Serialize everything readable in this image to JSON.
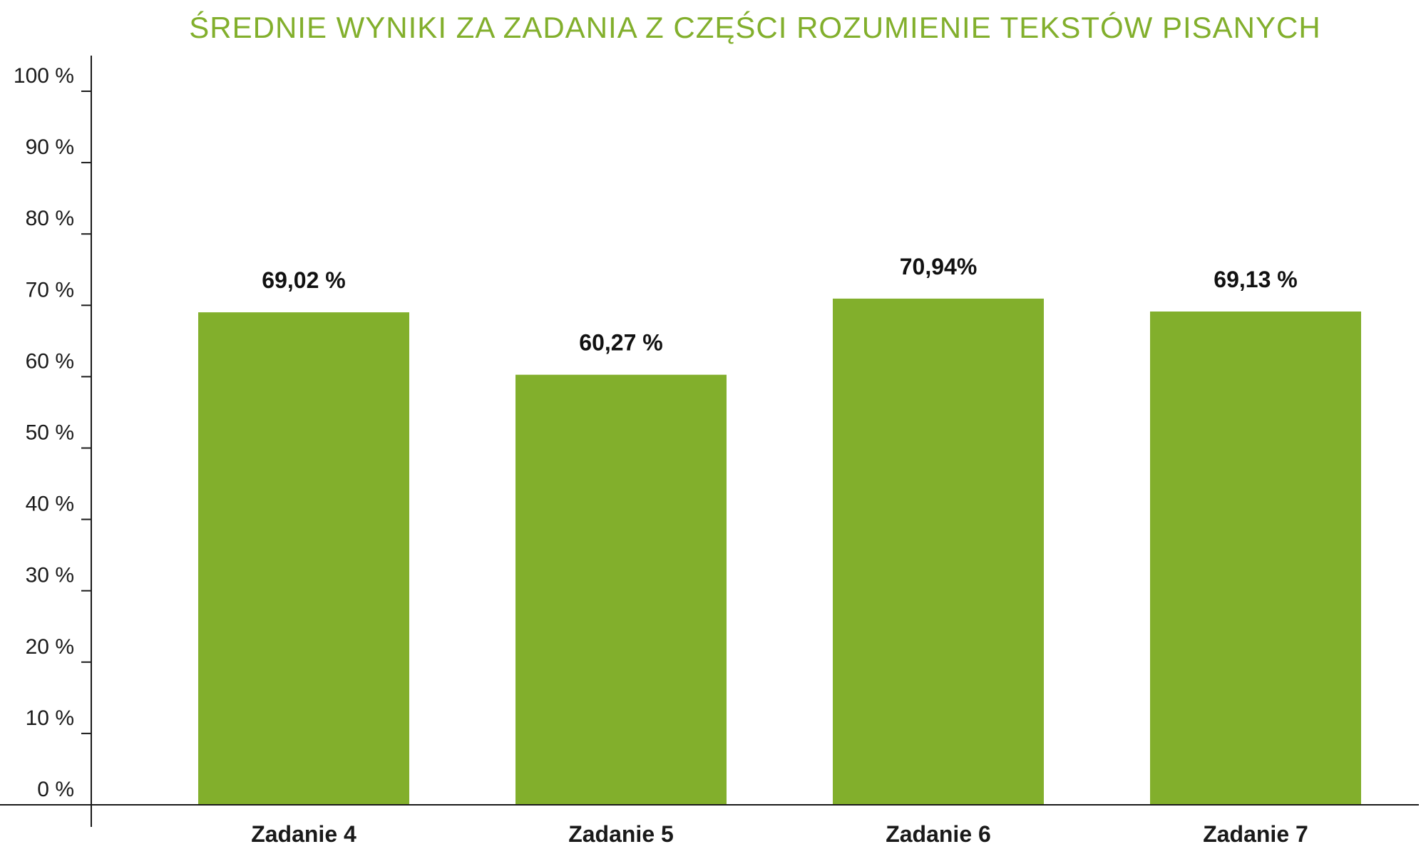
{
  "colors": {
    "bar": "#82AF2C",
    "title": "#82AF2C",
    "axis": "#1a1a1a"
  },
  "chart_data": {
    "type": "bar",
    "title": "ŚREDNIE WYNIKI ZA ZADANIA Z CZĘŚCI ROZUMIENIE TEKSTÓW PISANYCH",
    "xlabel": "",
    "ylabel": "",
    "ylim": [
      0,
      100
    ],
    "grid": false,
    "legend": "none",
    "categories": [
      "Zadanie 4",
      "Zadanie 5",
      "Zadanie 6",
      "Zadanie 7"
    ],
    "values": [
      69.02,
      60.27,
      70.94,
      69.13
    ],
    "data_labels": [
      "69,02 %",
      "60,27 %",
      "70,94%",
      "69,13 %"
    ],
    "yticks": [
      0,
      10,
      20,
      30,
      40,
      50,
      60,
      70,
      80,
      90,
      100
    ],
    "ytick_labels": [
      "0 %",
      "10 %",
      "20 %",
      "30 %",
      "40 %",
      "50 %",
      "60 %",
      "70 %",
      "80 %",
      "90 %",
      "100 %"
    ]
  }
}
